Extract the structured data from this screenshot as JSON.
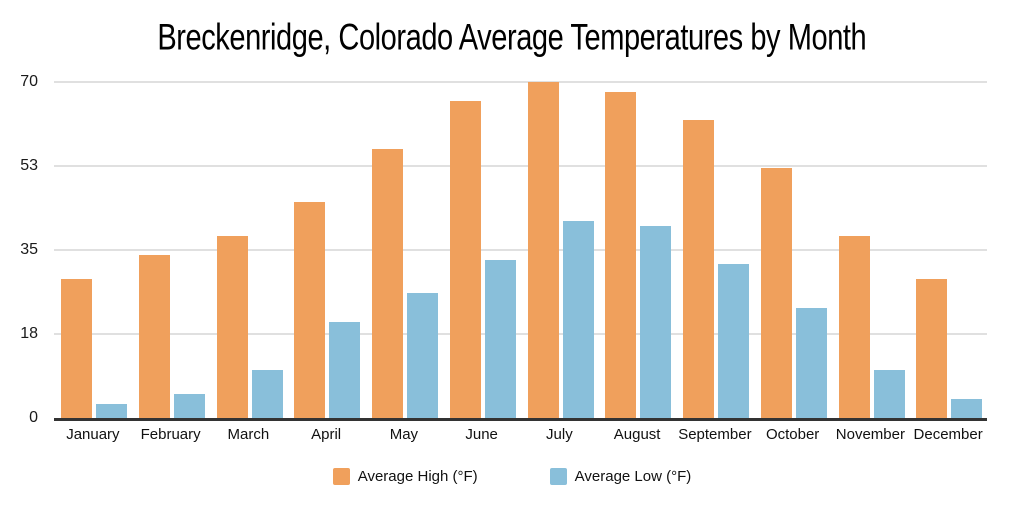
{
  "chart_data": {
    "type": "bar",
    "title": "Breckenridge, Colorado Average Temperatures by Month",
    "categories": [
      "January",
      "February",
      "March",
      "April",
      "May",
      "June",
      "July",
      "August",
      "September",
      "October",
      "November",
      "December"
    ],
    "series": [
      {
        "name": "Average High (°F)",
        "color": "#F0A05C",
        "values": [
          29,
          34,
          38,
          45,
          56,
          66,
          70,
          68,
          62,
          52,
          38,
          29
        ]
      },
      {
        "name": "Average Low (°F)",
        "color": "#89BFDA",
        "values": [
          3,
          5,
          10,
          20,
          26,
          33,
          41,
          40,
          32,
          23,
          10,
          4
        ]
      }
    ],
    "y_axis": {
      "tick_labels_top_to_bottom": [
        "70",
        "53",
        "35",
        "18",
        "0"
      ],
      "max": 70,
      "min": 0
    },
    "xlabel": "",
    "ylabel": "",
    "grid": "horizontal",
    "legend_position": "bottom"
  },
  "colors": {
    "bar_high": "#F0A05C",
    "bar_low": "#89BFDA",
    "gridline": "#E0E0E0",
    "axis_line": "#333333",
    "text": "#111111",
    "background": "#FFFFFF"
  }
}
